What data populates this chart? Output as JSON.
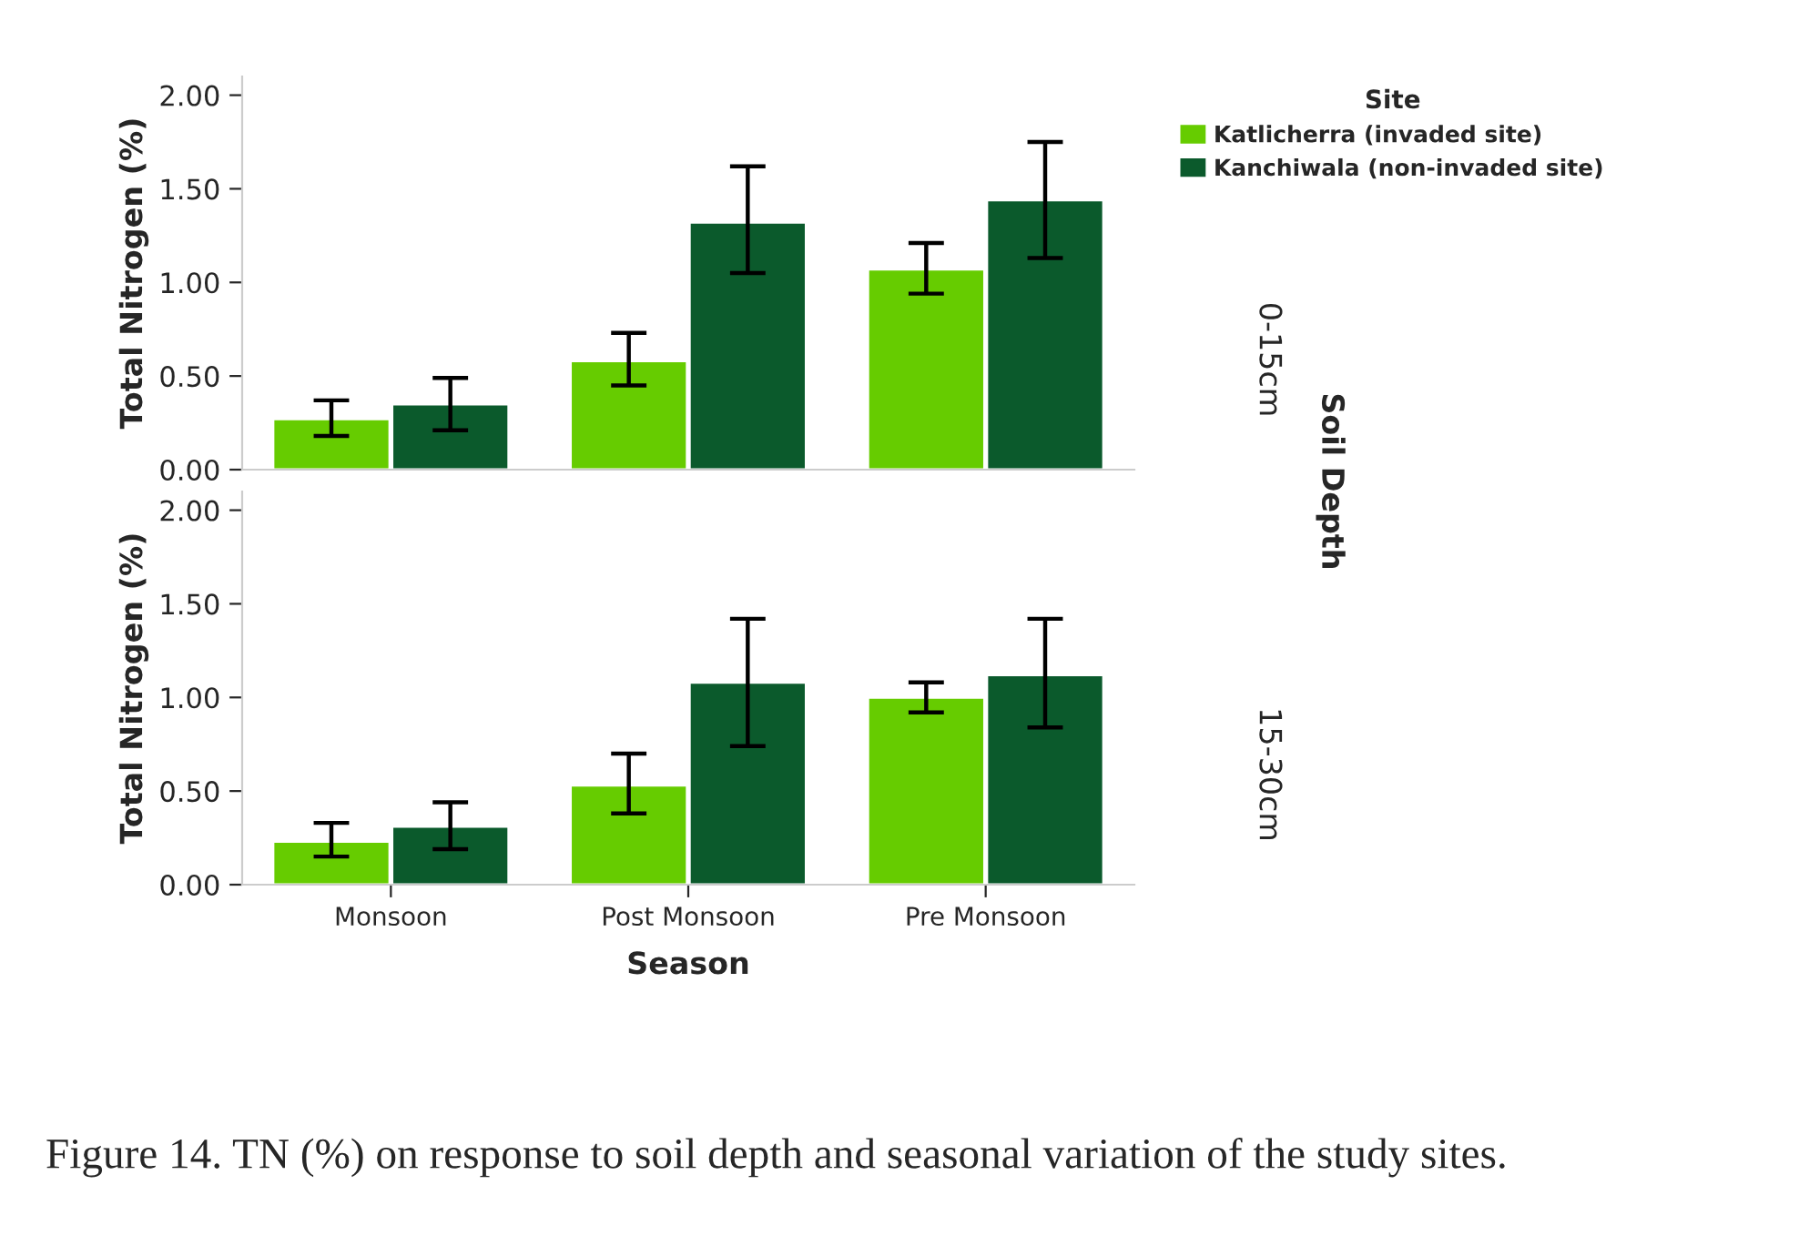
{
  "chart_data": [
    {
      "type": "bar",
      "categories": [
        null,
        null,
        null
      ],
      "ylabel": "Total Nitrogen (%)",
      "legend_title": "Site",
      "legend": "top right",
      "tick_labels": "y",
      "grid": false,
      "ylim": [
        0,
        2.1
      ],
      "yticks": [
        {
          "value": 0,
          "label": "0.00"
        },
        {
          "value": 0.5,
          "label": "0.50"
        },
        {
          "value": 1.0,
          "label": "1.00"
        },
        {
          "value": 1.5,
          "label": "1.50"
        },
        {
          "value": 2.0,
          "label": "2.00"
        }
      ],
      "annotations": [
        "0-15cm",
        "Soil Depth"
      ],
      "series": [
        {
          "name": "Katlicherra (invaded site)",
          "color": "#66cc00",
          "values": [
            0.27,
            0.58,
            1.07
          ],
          "errors": [
            [
              0.18,
              0.37
            ],
            [
              0.45,
              0.73
            ],
            [
              0.94,
              1.21
            ]
          ]
        },
        {
          "name": "Kanchiwala (non-invaded site)",
          "color": "#0b5a2c",
          "values": [
            0.35,
            1.32,
            1.44
          ],
          "errors": [
            [
              0.21,
              0.49
            ],
            [
              1.05,
              1.62
            ],
            [
              1.13,
              1.75
            ]
          ]
        }
      ]
    },
    {
      "type": "bar",
      "categories": [
        "Monsoon",
        "Post Monsoon",
        "Pre Monsoon"
      ],
      "xlabel": "Season",
      "ylabel": "Total Nitrogen (%)",
      "grid": false,
      "legend": false,
      "ylim": [
        0,
        2.1
      ],
      "yticks": [
        {
          "value": 0,
          "label": "0.00"
        },
        {
          "value": 0.5,
          "label": "0.50"
        },
        {
          "value": 1.0,
          "label": "1.00"
        },
        {
          "value": 1.5,
          "label": "1.50"
        },
        {
          "value": 2.0,
          "label": "2.00"
        }
      ],
      "annotations": [
        "15-30cm",
        "Figure 14. TN (%) on response to soil depth and seasonal variation of the study sites."
      ],
      "series": [
        {
          "color": "#66cc00",
          "values": [
            0.23,
            0.53,
            1.0
          ],
          "errors": [
            [
              0.15,
              0.33
            ],
            [
              0.38,
              0.7
            ],
            [
              0.92,
              1.08
            ]
          ]
        },
        {
          "color": "#0b5a2c",
          "values": [
            0.31,
            1.08,
            1.12
          ],
          "errors": [
            [
              0.19,
              0.44
            ],
            [
              0.74,
              1.42
            ],
            [
              0.84,
              1.42
            ]
          ]
        }
      ]
    }
  ]
}
